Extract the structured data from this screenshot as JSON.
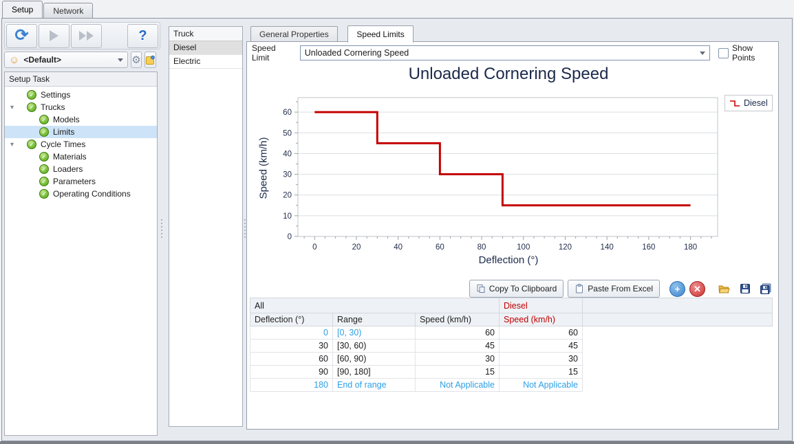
{
  "window": {
    "tabs": [
      {
        "label": "Setup",
        "active": true
      },
      {
        "label": "Network",
        "active": false
      }
    ]
  },
  "toolbar": {
    "sync_glyph": "⟳",
    "help_glyph": "?",
    "scenario": {
      "value": "<Default>",
      "mask_glyph": "☺",
      "gear_glyph": "⚙"
    }
  },
  "setup_task": {
    "title": "Setup Task",
    "items": [
      {
        "label": "Settings",
        "level": 1,
        "expander": false,
        "selected": false
      },
      {
        "label": "Trucks",
        "level": 1,
        "expander": true,
        "selected": false
      },
      {
        "label": "Models",
        "level": 2,
        "expander": false,
        "selected": false
      },
      {
        "label": "Limits",
        "level": 2,
        "expander": false,
        "selected": true
      },
      {
        "label": "Cycle Times",
        "level": 1,
        "expander": true,
        "selected": false
      },
      {
        "label": "Materials",
        "level": 2,
        "expander": false,
        "selected": false
      },
      {
        "label": "Loaders",
        "level": 2,
        "expander": false,
        "selected": false
      },
      {
        "label": "Parameters",
        "level": 2,
        "expander": false,
        "selected": false
      },
      {
        "label": "Operating Conditions",
        "level": 2,
        "expander": false,
        "selected": false
      }
    ]
  },
  "trucks": {
    "header": "Truck",
    "items": [
      {
        "label": "Diesel",
        "selected": true
      },
      {
        "label": "Electric",
        "selected": false
      }
    ]
  },
  "properties": {
    "tabs": [
      {
        "label": "General Properties",
        "active": false
      },
      {
        "label": "Speed Limits",
        "active": true
      }
    ],
    "speed_limit": {
      "label": "Speed Limit",
      "value": "Unloaded Cornering Speed"
    },
    "show_points": {
      "label": "Show Points",
      "checked": false
    },
    "actions": {
      "copy": "Copy To Clipboard",
      "paste": "Paste From Excel"
    }
  },
  "chart_data": {
    "type": "line",
    "line_style": "step",
    "title": "Unloaded Cornering Speed",
    "xlabel": "Deflection (°)",
    "ylabel": "Speed (km/h)",
    "xlim": [
      -8,
      193
    ],
    "ylim": [
      0,
      67
    ],
    "x_ticks": [
      0,
      20,
      40,
      60,
      80,
      100,
      120,
      140,
      160,
      180
    ],
    "y_ticks": [
      0,
      10,
      20,
      30,
      40,
      50,
      60
    ],
    "x_minor_step": 5,
    "y_minor_step": 5,
    "grid": "horizontal-major",
    "legend_position": "top-right",
    "series": [
      {
        "name": "Diesel",
        "color": "#c40000",
        "points": [
          [
            0,
            60
          ],
          [
            30,
            60
          ],
          [
            30,
            45
          ],
          [
            60,
            45
          ],
          [
            60,
            30
          ],
          [
            90,
            30
          ],
          [
            90,
            15
          ],
          [
            180,
            15
          ]
        ]
      }
    ]
  },
  "table": {
    "group_headers": [
      {
        "label": "All",
        "span": 3,
        "red": false
      },
      {
        "label": "Diesel",
        "span": 1,
        "red": true
      }
    ],
    "columns": [
      {
        "label": "Deflection (°)",
        "red": false
      },
      {
        "label": "Range",
        "red": false
      },
      {
        "label": "Speed (km/h)",
        "red": false
      },
      {
        "label": "Speed (km/h)",
        "red": true
      }
    ],
    "rows": [
      {
        "cells": [
          "0",
          "[0, 30)",
          "60",
          "60"
        ],
        "blue": [
          true,
          true,
          false,
          false
        ]
      },
      {
        "cells": [
          "30",
          "[30, 60)",
          "45",
          "45"
        ],
        "blue": [
          false,
          false,
          false,
          false
        ]
      },
      {
        "cells": [
          "60",
          "[60, 90)",
          "30",
          "30"
        ],
        "blue": [
          false,
          false,
          false,
          false
        ]
      },
      {
        "cells": [
          "90",
          "[90, 180]",
          "15",
          "15"
        ],
        "blue": [
          false,
          false,
          false,
          false
        ]
      },
      {
        "cells": [
          "180",
          "End of range",
          "Not Applicable",
          "Not Applicable"
        ],
        "blue": [
          true,
          true,
          true,
          true
        ]
      }
    ]
  },
  "colors": {
    "series_red": "#c40000",
    "link_blue": "#2d9fe6",
    "title_navy": "#1b2a4a"
  }
}
